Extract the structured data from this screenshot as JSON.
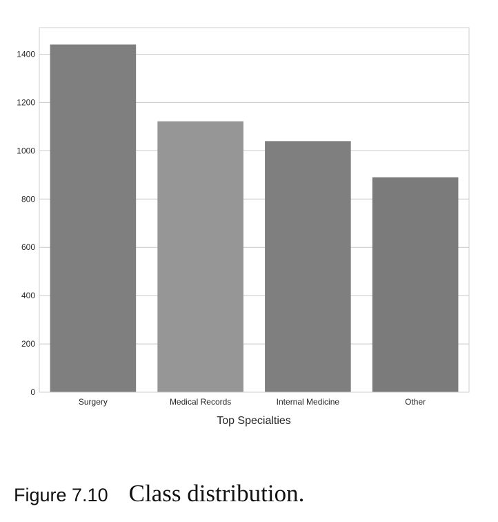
{
  "chart_data": {
    "type": "bar",
    "categories": [
      "Surgery",
      "Medical Records",
      "Internal Medicine",
      "Other"
    ],
    "values": [
      1440,
      1122,
      1040,
      890
    ],
    "xlabel": "Top Specialties",
    "ylabel": "",
    "ylim": [
      0,
      1510
    ],
    "yticks": [
      0,
      200,
      400,
      600,
      800,
      1000,
      1200,
      1400
    ],
    "grid": true,
    "bar_colors": [
      "#7f7f7f",
      "#969696",
      "#7f7f7f",
      "#7b7b7b"
    ],
    "grid_color": "#c8c8c8"
  },
  "caption": {
    "label": "Figure 7.10",
    "text": "Class distribution."
  }
}
